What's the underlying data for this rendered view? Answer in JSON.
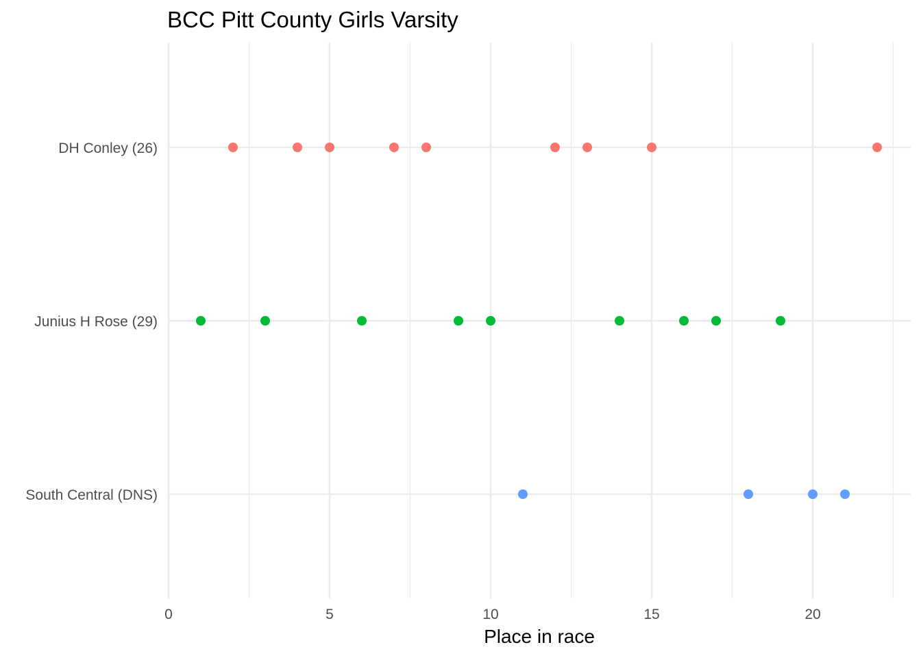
{
  "chart_data": {
    "type": "scatter",
    "title": "BCC Pitt County Girls Varsity",
    "xlabel": "Place in race",
    "ylabel": "",
    "xlim": [
      0,
      22.5
    ],
    "x_ticks": [
      0,
      5,
      10,
      15,
      20
    ],
    "x_tick_labels": [
      "0",
      "5",
      "10",
      "15",
      "20"
    ],
    "grid": true,
    "legend": "none",
    "categories": [
      "DH Conley (26)",
      "Junius H Rose (29)",
      "South Central (DNS)"
    ],
    "series": [
      {
        "category": "DH Conley (26)",
        "color": "#F8766D",
        "x": [
          2,
          4,
          5,
          7,
          8,
          12,
          13,
          15,
          22
        ]
      },
      {
        "category": "Junius H Rose (29)",
        "color": "#00BA38",
        "x": [
          1,
          3,
          6,
          9,
          10,
          14,
          16,
          17,
          19
        ]
      },
      {
        "category": "South Central (DNS)",
        "color": "#619CFF",
        "x": [
          11,
          18,
          20,
          21
        ]
      }
    ]
  }
}
